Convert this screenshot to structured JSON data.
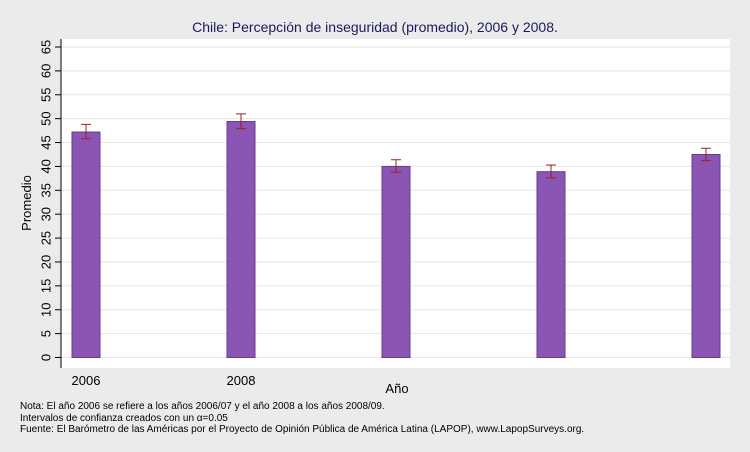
{
  "chart_data": {
    "type": "bar",
    "title": "Chile: Percepción de inseguridad (promedio), 2006 y 2008.",
    "xlabel": "Año",
    "ylabel": "Promedio",
    "ylim": [
      0,
      65
    ],
    "yticks": [
      0,
      5,
      10,
      15,
      20,
      25,
      30,
      35,
      40,
      45,
      50,
      55,
      60,
      65
    ],
    "grid": true,
    "categories": [
      "2006",
      "2008",
      "",
      "",
      ""
    ],
    "values": [
      47.2,
      49.4,
      40.0,
      38.9,
      42.5
    ],
    "ci_low": [
      45.8,
      47.9,
      38.8,
      37.6,
      41.2
    ],
    "ci_high": [
      48.8,
      51.0,
      41.4,
      40.3,
      43.8
    ],
    "colors": {
      "bar": "#8b55b3",
      "bar_edge": "#6a3a90",
      "error": "#9b2323",
      "plot_bg": "#ffffff",
      "page_bg": "#ebebeb",
      "grid": "#e6e6e6",
      "title": "#1a1a5a"
    }
  },
  "notes": {
    "line1": "Nota: El año 2006 se refiere a los años 2006/07 y el año 2008 a los años 2008/09.",
    "line2": "Intervalos de confianza creados con un α=0.05",
    "line3": "Fuente: El Barómetro de las Américas por el Proyecto de Opinión Pública de América Latina (LAPOP), www.LapopSurveys.org."
  }
}
